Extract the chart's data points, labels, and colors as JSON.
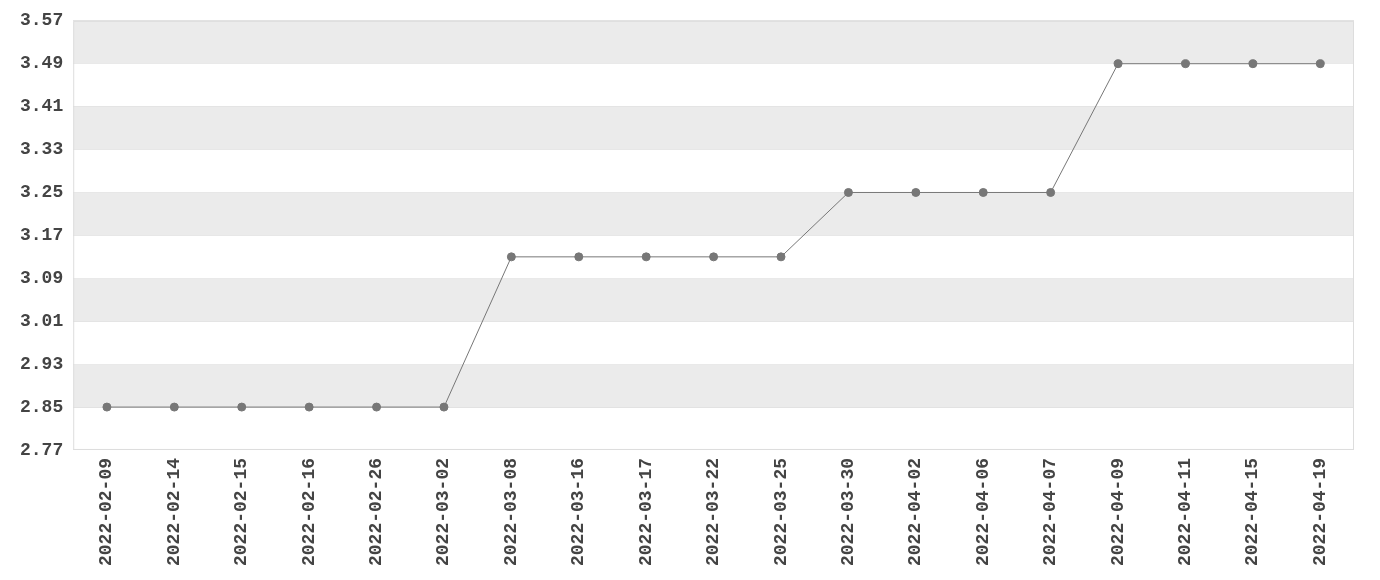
{
  "chart_data": {
    "type": "line",
    "categories": [
      "2022-02-09",
      "2022-02-14",
      "2022-02-15",
      "2022-02-16",
      "2022-02-26",
      "2022-03-02",
      "2022-03-08",
      "2022-03-16",
      "2022-03-17",
      "2022-03-22",
      "2022-03-25",
      "2022-03-30",
      "2022-04-02",
      "2022-04-06",
      "2022-04-07",
      "2022-04-09",
      "2022-04-11",
      "2022-04-15",
      "2022-04-19"
    ],
    "series": [
      {
        "color": "#777777",
        "values": [
          2.85,
          2.85,
          2.85,
          2.85,
          2.85,
          2.85,
          3.13,
          3.13,
          3.13,
          3.13,
          3.13,
          3.25,
          3.25,
          3.25,
          3.25,
          3.49,
          3.49,
          3.49,
          3.49
        ]
      }
    ],
    "ylim": [
      2.77,
      3.57
    ],
    "yticks": [
      2.77,
      2.85,
      2.93,
      3.01,
      3.09,
      3.17,
      3.25,
      3.33,
      3.41,
      3.49,
      3.57
    ],
    "grid": "y",
    "legend": false,
    "marker": "circle",
    "line_style": "solid"
  }
}
